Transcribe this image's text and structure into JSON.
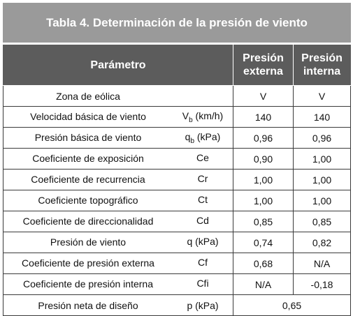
{
  "title": "Tabla 4. Determinación de la presión de viento",
  "headers": {
    "parametro": "Parámetro",
    "externa_line1": "Presión",
    "externa_line2": "externa",
    "interna_line1": "Presión",
    "interna_line2": "interna"
  },
  "rows": [
    {
      "name": "Zona de eólica",
      "sym_main": "",
      "sym_sub": "",
      "sym_unit": "",
      "ext": "V",
      "int": "V"
    },
    {
      "name": "Velocidad básica de viento",
      "sym_main": "V",
      "sym_sub": "b",
      "sym_unit": " (km/h)",
      "ext": "140",
      "int": "140"
    },
    {
      "name": "Presión básica de viento",
      "sym_main": "q",
      "sym_sub": "b",
      "sym_unit": " (kPa)",
      "ext": "0,96",
      "int": "0,96"
    },
    {
      "name": "Coeficiente de exposición",
      "sym_main": "Ce",
      "sym_sub": "",
      "sym_unit": "",
      "ext": "0,90",
      "int": "1,00"
    },
    {
      "name": "Coeficiente de recurrencia",
      "sym_main": "Cr",
      "sym_sub": "",
      "sym_unit": "",
      "ext": "1,00",
      "int": "1,00"
    },
    {
      "name": "Coeficiente topográfico",
      "sym_main": "Ct",
      "sym_sub": "",
      "sym_unit": "",
      "ext": "1,00",
      "int": "1,00"
    },
    {
      "name": "Coeficiente de direccionalidad",
      "sym_main": "Cd",
      "sym_sub": "",
      "sym_unit": "",
      "ext": "0,85",
      "int": "0,85"
    },
    {
      "name": "Presión de viento",
      "sym_main": "q (kPa)",
      "sym_sub": "",
      "sym_unit": "",
      "ext": "0,74",
      "int": "0,82"
    },
    {
      "name": "Coeficiente de presión externa",
      "sym_main": "Cf",
      "sym_sub": "",
      "sym_unit": "",
      "ext": "0,68",
      "int": "N/A"
    },
    {
      "name": "Coeficiente de presión interna",
      "sym_main": "Cfi",
      "sym_sub": "",
      "sym_unit": "",
      "ext": "N/A",
      "int": "-0,18"
    }
  ],
  "final_row": {
    "name": "Presión neta de diseño",
    "sym": "p (kPa)",
    "value": "0,65"
  }
}
